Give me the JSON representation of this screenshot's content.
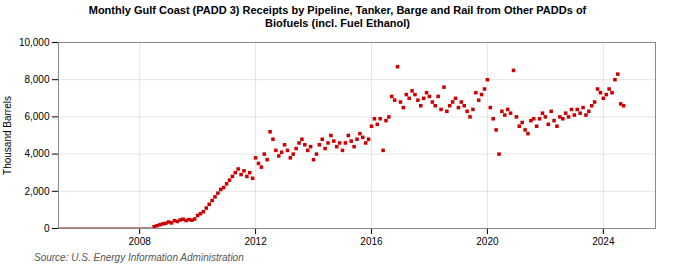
{
  "chart_data": {
    "type": "scatter",
    "title": "Monthly Gulf Coast (PADD 3) Receipts by Pipeline, Tanker, Barge and Rail from Other PADDs of\nBiofuels (incl. Fuel Ethanol)",
    "ylabel": "Thousand Barrels",
    "source": "Source: U.S. Energy Information Administration",
    "xlim": [
      2005.2,
      2025.8
    ],
    "xticks": [
      2008,
      2012,
      2016,
      2020,
      2024
    ],
    "ylim": [
      0,
      10000
    ],
    "yticks": [
      0,
      {
        "value": 2000,
        "label": "2,000"
      },
      {
        "value": 4000,
        "label": "4,000"
      },
      {
        "value": 6000,
        "label": "6,000"
      },
      {
        "value": 8000,
        "label": "8,000"
      },
      {
        "value": 10000,
        "label": "10,000"
      }
    ],
    "grid": true,
    "series": [
      {
        "type": "line",
        "color": "#8b0000",
        "x": [
          2005.2,
          2008.4
        ],
        "values": [
          0,
          0
        ]
      },
      {
        "type": "scatter",
        "color": "#cc0000",
        "marker": "square",
        "x": [
          2008.5,
          2008.6,
          2008.7,
          2008.8,
          2008.9,
          2009.0,
          2009.1,
          2009.2,
          2009.3,
          2009.4,
          2009.5,
          2009.6,
          2009.7,
          2009.8,
          2009.9,
          2010.0,
          2010.1,
          2010.2,
          2010.3,
          2010.4,
          2010.5,
          2010.6,
          2010.7,
          2010.8,
          2010.9,
          2011.0,
          2011.1,
          2011.2,
          2011.3,
          2011.4,
          2011.5,
          2011.6,
          2011.7,
          2011.8,
          2011.9,
          2012.0,
          2012.1,
          2012.2,
          2012.3,
          2012.4,
          2012.5,
          2012.6,
          2012.7,
          2012.8,
          2012.9,
          2013.0,
          2013.1,
          2013.2,
          2013.3,
          2013.4,
          2013.5,
          2013.6,
          2013.7,
          2013.8,
          2013.9,
          2014.0,
          2014.1,
          2014.2,
          2014.3,
          2014.4,
          2014.5,
          2014.6,
          2014.7,
          2014.8,
          2014.9,
          2015.0,
          2015.1,
          2015.2,
          2015.3,
          2015.4,
          2015.5,
          2015.6,
          2015.7,
          2015.8,
          2015.9,
          2016.0,
          2016.1,
          2016.2,
          2016.3,
          2016.4,
          2016.5,
          2016.6,
          2016.7,
          2016.8,
          2016.9,
          2017.0,
          2017.1,
          2017.2,
          2017.3,
          2017.4,
          2017.5,
          2017.6,
          2017.7,
          2017.8,
          2017.9,
          2018.0,
          2018.1,
          2018.2,
          2018.3,
          2018.4,
          2018.5,
          2018.6,
          2018.7,
          2018.8,
          2018.9,
          2019.0,
          2019.1,
          2019.2,
          2019.3,
          2019.4,
          2019.5,
          2019.6,
          2019.7,
          2019.8,
          2019.9,
          2020.0,
          2020.1,
          2020.2,
          2020.3,
          2020.4,
          2020.5,
          2020.6,
          2020.7,
          2020.8,
          2020.9,
          2021.0,
          2021.1,
          2021.2,
          2021.3,
          2021.4,
          2021.5,
          2021.6,
          2021.7,
          2021.8,
          2021.9,
          2022.0,
          2022.1,
          2022.2,
          2022.3,
          2022.4,
          2022.5,
          2022.6,
          2022.7,
          2022.8,
          2022.9,
          2023.0,
          2023.1,
          2023.2,
          2023.3,
          2023.4,
          2023.5,
          2023.6,
          2023.7,
          2023.8,
          2023.9,
          2024.0,
          2024.1,
          2024.2,
          2024.3,
          2024.4,
          2024.5,
          2024.6,
          2024.7
        ],
        "values": [
          100,
          150,
          200,
          250,
          280,
          350,
          300,
          420,
          380,
          460,
          500,
          430,
          480,
          450,
          510,
          700,
          800,
          900,
          1100,
          1300,
          1500,
          1700,
          1900,
          2100,
          2200,
          2400,
          2600,
          2800,
          3000,
          3200,
          2900,
          3100,
          2800,
          3000,
          2700,
          3800,
          3500,
          3300,
          4000,
          3700,
          5200,
          4800,
          4200,
          3900,
          4100,
          4500,
          4200,
          3800,
          4000,
          4300,
          4600,
          4800,
          4500,
          4200,
          4400,
          3700,
          4000,
          4500,
          4800,
          4300,
          4600,
          5000,
          4700,
          4400,
          4600,
          4200,
          4600,
          5000,
          4700,
          4400,
          4800,
          5100,
          4900,
          4600,
          4800,
          5500,
          5900,
          5600,
          5900,
          4200,
          5800,
          6000,
          7100,
          6900,
          8700,
          6800,
          6500,
          7200,
          7000,
          7400,
          7200,
          6900,
          6600,
          7000,
          7300,
          7100,
          6800,
          6600,
          7100,
          6400,
          7600,
          6300,
          6600,
          6800,
          7000,
          6500,
          6800,
          6600,
          6300,
          6000,
          6400,
          7300,
          6900,
          7200,
          7500,
          8000,
          6500,
          5900,
          5300,
          4000,
          6300,
          6100,
          6400,
          6200,
          8500,
          6000,
          5500,
          5700,
          5300,
          5100,
          5800,
          5900,
          5500,
          5900,
          6200,
          6000,
          5600,
          6300,
          5800,
          5500,
          6000,
          5900,
          6200,
          6000,
          6400,
          6100,
          6400,
          6200,
          6500,
          6100,
          6300,
          6600,
          6800,
          7500,
          7300,
          7000,
          7200,
          7500,
          7300,
          8000,
          8300,
          6700,
          6600
        ]
      }
    ]
  }
}
